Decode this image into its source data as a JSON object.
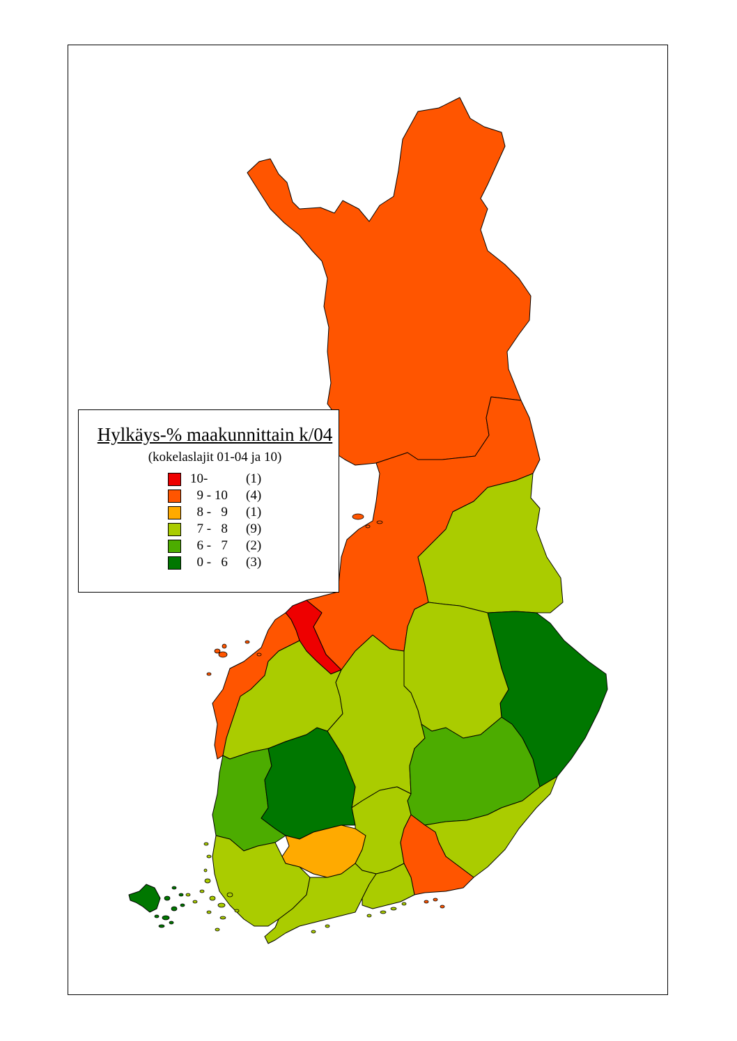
{
  "legend": {
    "title": "Hylkäys-% maakunnittain k/04",
    "subtitle": "(kokelaslajit 01-04 ja 10)",
    "classes": [
      {
        "range": "10-",
        "count": "(1)",
        "color": "#ee0000"
      },
      {
        "range": "  9 - 10",
        "count": "(4)",
        "color": "#ff5500"
      },
      {
        "range": "  8 -   9",
        "count": "(1)",
        "color": "#ffaa00"
      },
      {
        "range": "  7 -   8",
        "count": "(9)",
        "color": "#aacc00"
      },
      {
        "range": "  6 -   7",
        "count": "(2)",
        "color": "#4cac00"
      },
      {
        "range": "  0 -   6",
        "count": "(3)",
        "color": "#007700"
      }
    ]
  },
  "regions": [
    {
      "name": "lapland",
      "class": 1
    },
    {
      "name": "northern-ostrobothnia",
      "class": 1
    },
    {
      "name": "kainuu",
      "class": 3
    },
    {
      "name": "north-karelia",
      "class": 5
    },
    {
      "name": "northern-savonia",
      "class": 3
    },
    {
      "name": "central-ostrobothnia",
      "class": 0
    },
    {
      "name": "ostrobothnia",
      "class": 1
    },
    {
      "name": "southern-ostrobothnia",
      "class": 3
    },
    {
      "name": "central-finland",
      "class": 3
    },
    {
      "name": "southern-savonia",
      "class": 4
    },
    {
      "name": "satakunta",
      "class": 4
    },
    {
      "name": "pirkanmaa",
      "class": 5
    },
    {
      "name": "kanta-hame",
      "class": 2
    },
    {
      "name": "paijat-hame",
      "class": 3
    },
    {
      "name": "south-karelia",
      "class": 3
    },
    {
      "name": "kymenlaakso",
      "class": 1
    },
    {
      "name": "finland-proper",
      "class": 3
    },
    {
      "name": "uusimaa",
      "class": 3
    },
    {
      "name": "eastern-uusimaa",
      "class": 3
    },
    {
      "name": "aland",
      "class": 5
    }
  ]
}
